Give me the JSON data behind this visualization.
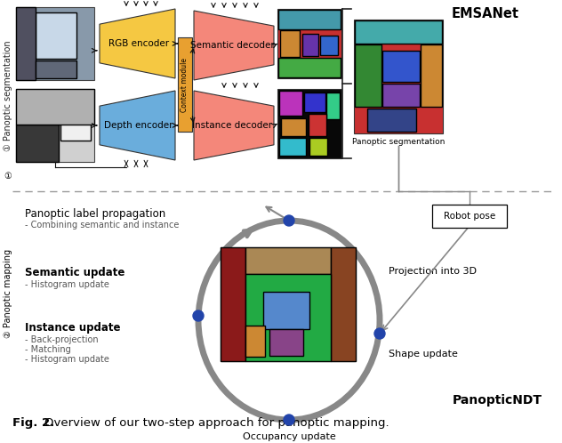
{
  "title_prefix": "Fig. 2.",
  "title_text": "   Overview of our two-step approach for panoptic mapping.",
  "top_label": "① Panoptic segmentation",
  "bottom_label": "② Panoptic mapping",
  "emsa_label": "EMSANet",
  "panopticndt_label": "PanopticNDT",
  "panoptic_seg_label": "Panoptic segmentation",
  "robot_pose_label": "Robot pose",
  "projection_label": "Projection into 3D",
  "shape_label": "Shape update",
  "occupancy_label": "Occupancy update",
  "panoptic_prop_label": "Panoptic label propagation",
  "panoptic_prop_sub": "- Combining semantic and instance",
  "semantic_update_label": "Semantic update",
  "semantic_update_sub": "- Histogram update",
  "instance_update_label": "Instance update",
  "instance_update_sub1": "- Back-projection",
  "instance_update_sub2": "- Matching",
  "instance_update_sub3": "- Histogram update",
  "rgb_encoder_label": "RGB encoder",
  "depth_encoder_label": "Depth encoder",
  "context_module_label": "Context module",
  "semantic_decoder_label": "Semantic decoder",
  "instance_decoder_label": "Instance decoder",
  "bg_color": "#ffffff",
  "yellow_color": "#f5c842",
  "blue_color": "#6aaddc",
  "salmon_color": "#f4877a",
  "orange_context": "#e8a030",
  "gray_circle": "#888888",
  "blue_dot": "#2244aa",
  "divider_color": "#999999",
  "bracket_color": "#222222",
  "arrow_color": "#111111"
}
